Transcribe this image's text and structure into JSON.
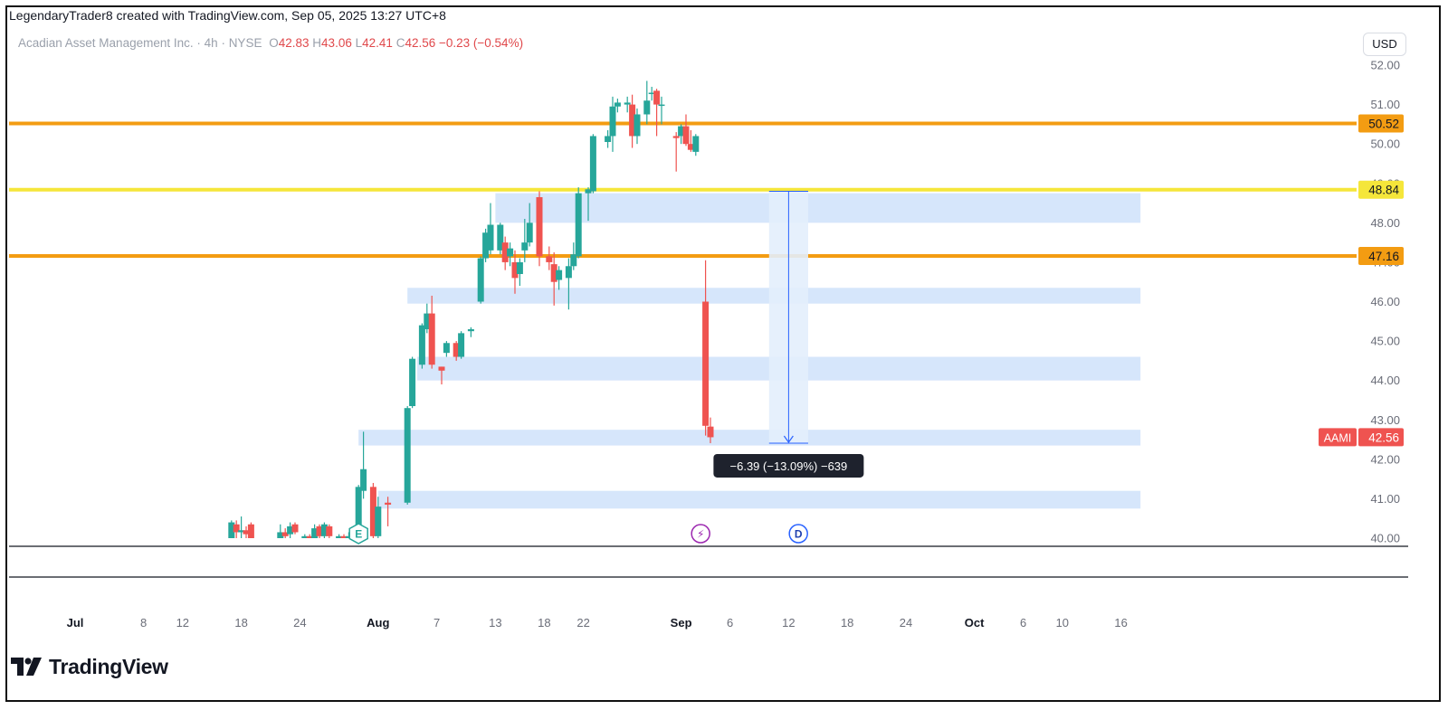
{
  "header": {
    "caption": "LegendaryTrader8 created with TradingView.com, Sep 05, 2025 13:27 UTC+8"
  },
  "symbol": {
    "name": "Acadian Asset Management Inc.",
    "interval": "4h",
    "exchange": "NYSE",
    "open_label": "O",
    "open": "42.83",
    "high_label": "H",
    "high": "43.06",
    "low_label": "L",
    "low": "42.41",
    "close_label": "C",
    "close": "42.56",
    "change": "−0.23 (−0.54%)"
  },
  "currency": "USD",
  "branding": {
    "logo_text": "TradingView"
  },
  "colors": {
    "up": "#26a69a",
    "down": "#ef5350",
    "orange_level": "#f39c12",
    "yellow_level": "#f5e63a",
    "zone": "#d6e6fb",
    "measure": "#2962ff"
  },
  "chart_data": {
    "type": "candlestick",
    "symbol": "AAMI",
    "ylim": [
      39.9,
      52.2
    ],
    "y_ticks": [
      "52.00",
      "51.00",
      "50.00",
      "49.00",
      "48.00",
      "47.00",
      "46.00",
      "45.00",
      "44.00",
      "43.00",
      "42.00",
      "41.00",
      "40.00"
    ],
    "x_ticks": [
      {
        "date": "2025-07-01",
        "label": "Jul"
      },
      {
        "date": "2025-07-08",
        "label": "8"
      },
      {
        "date": "2025-07-12",
        "label": "12"
      },
      {
        "date": "2025-07-18",
        "label": "18"
      },
      {
        "date": "2025-07-24",
        "label": "24"
      },
      {
        "date": "2025-08-01",
        "label": "Aug"
      },
      {
        "date": "2025-08-07",
        "label": "7"
      },
      {
        "date": "2025-08-13",
        "label": "13"
      },
      {
        "date": "2025-08-18",
        "label": "18"
      },
      {
        "date": "2025-08-22",
        "label": "22"
      },
      {
        "date": "2025-09-01",
        "label": "Sep"
      },
      {
        "date": "2025-09-06",
        "label": "6"
      },
      {
        "date": "2025-09-12",
        "label": "12"
      },
      {
        "date": "2025-09-18",
        "label": "18"
      },
      {
        "date": "2025-09-24",
        "label": "24"
      },
      {
        "date": "2025-10-01",
        "label": "Oct"
      },
      {
        "date": "2025-10-06",
        "label": "6"
      },
      {
        "date": "2025-10-10",
        "label": "10"
      },
      {
        "date": "2025-10-16",
        "label": "16"
      }
    ],
    "levels": [
      {
        "price": 50.52,
        "label": "50.52",
        "color": "#f39c12"
      },
      {
        "price": 48.84,
        "label": "48.84",
        "color": "#f5e63a"
      },
      {
        "price": 47.16,
        "label": "47.16",
        "color": "#f39c12"
      }
    ],
    "zones": [
      {
        "from": "2025-08-13",
        "to": "2025-10-18",
        "low": 48.0,
        "high": 48.75
      },
      {
        "from": "2025-08-04",
        "to": "2025-10-18",
        "low": 45.95,
        "high": 46.35
      },
      {
        "from": "2025-08-05",
        "to": "2025-10-18",
        "low": 44.0,
        "high": 44.6
      },
      {
        "from": "2025-07-30",
        "to": "2025-10-18",
        "low": 42.35,
        "high": 42.75
      },
      {
        "from": "2025-08-01",
        "to": "2025-10-18",
        "low": 40.75,
        "high": 41.2
      }
    ],
    "measure": {
      "from": "2025-09-10",
      "to": "2025-09-14",
      "start": 48.8,
      "end": 42.41,
      "label": "−6.39 (−13.09%) −639"
    },
    "markers": [
      {
        "date": "2025-07-30",
        "label": "E"
      },
      {
        "date": "2025-09-03",
        "label": "⚡"
      },
      {
        "date": "2025-09-13",
        "label": "D"
      }
    ],
    "last_price": {
      "symbol": "AAMI",
      "value": "42.56",
      "price": 42.56
    },
    "candles": [
      {
        "t": "2025-07-17T00",
        "o": 40.0,
        "h": 40.45,
        "l": 39.95,
        "c": 40.4
      },
      {
        "t": "2025-07-17T12",
        "o": 40.35,
        "h": 40.45,
        "l": 40.0,
        "c": 40.15
      },
      {
        "t": "2025-07-18T00",
        "o": 40.15,
        "h": 40.55,
        "l": 40.0,
        "c": 40.2
      },
      {
        "t": "2025-07-18T12",
        "o": 40.2,
        "h": 40.3,
        "l": 40.0,
        "c": 40.1
      },
      {
        "t": "2025-07-19T00",
        "o": 40.35,
        "h": 40.4,
        "l": 39.95,
        "c": 40.0
      },
      {
        "t": "2025-07-22T00",
        "o": 40.0,
        "h": 40.35,
        "l": 39.95,
        "c": 40.15
      },
      {
        "t": "2025-07-22T12",
        "o": 40.15,
        "h": 40.25,
        "l": 40.0,
        "c": 40.05
      },
      {
        "t": "2025-07-23T00",
        "o": 40.1,
        "h": 40.4,
        "l": 40.0,
        "c": 40.3
      },
      {
        "t": "2025-07-23T12",
        "o": 40.35,
        "h": 40.4,
        "l": 40.1,
        "c": 40.15
      },
      {
        "t": "2025-07-24T12",
        "o": 40.0,
        "h": 40.1,
        "l": 39.95,
        "c": 40.05
      },
      {
        "t": "2025-07-25T00",
        "o": 40.05,
        "h": 40.1,
        "l": 39.95,
        "c": 40.0
      },
      {
        "t": "2025-07-25T12",
        "o": 40.0,
        "h": 40.35,
        "l": 39.95,
        "c": 40.25
      },
      {
        "t": "2025-07-26T00",
        "o": 40.3,
        "h": 40.35,
        "l": 40.0,
        "c": 40.05
      },
      {
        "t": "2025-07-26T12",
        "o": 40.05,
        "h": 40.4,
        "l": 39.95,
        "c": 40.35
      },
      {
        "t": "2025-07-27T00",
        "o": 40.3,
        "h": 40.35,
        "l": 40.0,
        "c": 40.05
      },
      {
        "t": "2025-07-28T00",
        "o": 40.0,
        "h": 40.1,
        "l": 39.95,
        "c": 40.05
      },
      {
        "t": "2025-07-28T12",
        "o": 40.05,
        "h": 40.1,
        "l": 39.95,
        "c": 40.0
      },
      {
        "t": "2025-07-29T00",
        "o": 40.0,
        "h": 40.15,
        "l": 39.95,
        "c": 40.05
      },
      {
        "t": "2025-07-30T00",
        "o": 40.05,
        "h": 41.35,
        "l": 39.95,
        "c": 41.3
      },
      {
        "t": "2025-07-30T12",
        "o": 41.2,
        "h": 42.7,
        "l": 41.0,
        "c": 41.75
      },
      {
        "t": "2025-07-31T12",
        "o": 41.3,
        "h": 41.4,
        "l": 40.0,
        "c": 40.05
      },
      {
        "t": "2025-08-01T00",
        "o": 40.05,
        "h": 41.05,
        "l": 39.95,
        "c": 40.8
      },
      {
        "t": "2025-08-02T00",
        "o": 40.9,
        "h": 41.05,
        "l": 40.3,
        "c": 40.85
      },
      {
        "t": "2025-08-04T00",
        "o": 40.9,
        "h": 43.35,
        "l": 40.85,
        "c": 43.3
      },
      {
        "t": "2025-08-04T12",
        "o": 43.35,
        "h": 44.6,
        "l": 43.3,
        "c": 44.55
      },
      {
        "t": "2025-08-05T12",
        "o": 44.4,
        "h": 45.45,
        "l": 44.3,
        "c": 45.4
      },
      {
        "t": "2025-08-06T00",
        "o": 45.3,
        "h": 45.95,
        "l": 45.2,
        "c": 45.7
      },
      {
        "t": "2025-08-06T12",
        "o": 45.7,
        "h": 46.15,
        "l": 44.3,
        "c": 44.4
      },
      {
        "t": "2025-08-07T12",
        "o": 44.35,
        "h": 44.35,
        "l": 43.9,
        "c": 44.25
      },
      {
        "t": "2025-08-08T00",
        "o": 44.7,
        "h": 45.0,
        "l": 44.6,
        "c": 44.95
      },
      {
        "t": "2025-08-09T00",
        "o": 44.95,
        "h": 45.0,
        "l": 44.5,
        "c": 44.6
      },
      {
        "t": "2025-08-09T12",
        "o": 44.6,
        "h": 45.25,
        "l": 44.55,
        "c": 45.2
      },
      {
        "t": "2025-08-10T12",
        "o": 45.25,
        "h": 45.35,
        "l": 45.1,
        "c": 45.3
      },
      {
        "t": "2025-08-11T12",
        "o": 46.0,
        "h": 47.15,
        "l": 45.95,
        "c": 47.1
      },
      {
        "t": "2025-08-12T00",
        "o": 47.1,
        "h": 47.85,
        "l": 47.0,
        "c": 47.75
      },
      {
        "t": "2025-08-12T12",
        "o": 47.3,
        "h": 48.5,
        "l": 47.2,
        "c": 47.95
      },
      {
        "t": "2025-08-13T12",
        "o": 47.3,
        "h": 48.0,
        "l": 47.2,
        "c": 47.95
      },
      {
        "t": "2025-08-14T00",
        "o": 47.5,
        "h": 47.65,
        "l": 46.8,
        "c": 47.0
      },
      {
        "t": "2025-08-14T12",
        "o": 47.15,
        "h": 47.5,
        "l": 46.9,
        "c": 47.35
      },
      {
        "t": "2025-08-15T00",
        "o": 47.0,
        "h": 47.3,
        "l": 46.2,
        "c": 46.6
      },
      {
        "t": "2025-08-15T12",
        "o": 46.7,
        "h": 47.1,
        "l": 46.4,
        "c": 47.0
      },
      {
        "t": "2025-08-16T00",
        "o": 47.3,
        "h": 48.1,
        "l": 47.0,
        "c": 47.5
      },
      {
        "t": "2025-08-16T12",
        "o": 47.5,
        "h": 48.5,
        "l": 47.4,
        "c": 48.0
      },
      {
        "t": "2025-08-17T12",
        "o": 48.65,
        "h": 48.8,
        "l": 46.9,
        "c": 47.15
      },
      {
        "t": "2025-08-18T12",
        "o": 47.15,
        "h": 47.4,
        "l": 46.8,
        "c": 47.0
      },
      {
        "t": "2025-08-19T00",
        "o": 46.95,
        "h": 47.25,
        "l": 45.9,
        "c": 46.5
      },
      {
        "t": "2025-08-19T12",
        "o": 46.55,
        "h": 46.9,
        "l": 46.3,
        "c": 46.8
      },
      {
        "t": "2025-08-20T12",
        "o": 46.6,
        "h": 47.1,
        "l": 45.8,
        "c": 46.9
      },
      {
        "t": "2025-08-21T00",
        "o": 46.9,
        "h": 47.5,
        "l": 46.8,
        "c": 47.2
      },
      {
        "t": "2025-08-21T12",
        "o": 47.15,
        "h": 48.9,
        "l": 47.1,
        "c": 48.75
      },
      {
        "t": "2025-08-22T12",
        "o": 48.75,
        "h": 48.9,
        "l": 48.05,
        "c": 48.85
      },
      {
        "t": "2025-08-23T00",
        "o": 48.8,
        "h": 50.25,
        "l": 48.75,
        "c": 50.2
      },
      {
        "t": "2025-08-24T12",
        "o": 50.05,
        "h": 50.35,
        "l": 49.9,
        "c": 50.2
      },
      {
        "t": "2025-08-25T00",
        "o": 50.2,
        "h": 51.2,
        "l": 49.8,
        "c": 50.95
      },
      {
        "t": "2025-08-25T12",
        "o": 50.95,
        "h": 51.15,
        "l": 50.8,
        "c": 51.05
      },
      {
        "t": "2025-08-26T12",
        "o": 51.0,
        "h": 51.2,
        "l": 50.8,
        "c": 51.05
      },
      {
        "t": "2025-08-27T00",
        "o": 51.0,
        "h": 51.25,
        "l": 49.9,
        "c": 50.2
      },
      {
        "t": "2025-08-27T12",
        "o": 50.2,
        "h": 50.9,
        "l": 50.0,
        "c": 50.75
      },
      {
        "t": "2025-08-28T12",
        "o": 50.75,
        "h": 51.6,
        "l": 50.5,
        "c": 51.1
      },
      {
        "t": "2025-08-29T00",
        "o": 51.3,
        "h": 51.45,
        "l": 51.1,
        "c": 51.3
      },
      {
        "t": "2025-08-29T12",
        "o": 51.35,
        "h": 51.4,
        "l": 50.2,
        "c": 51.0
      },
      {
        "t": "2025-08-30T00",
        "o": 51.0,
        "h": 51.2,
        "l": 50.5,
        "c": 51.0
      },
      {
        "t": "2025-08-31T12",
        "o": 50.2,
        "h": 50.3,
        "l": 49.3,
        "c": 50.15
      },
      {
        "t": "2025-09-01T00",
        "o": 50.2,
        "h": 50.5,
        "l": 50.0,
        "c": 50.45
      },
      {
        "t": "2025-09-01T12",
        "o": 50.45,
        "h": 50.75,
        "l": 49.95,
        "c": 50.0
      },
      {
        "t": "2025-09-02T00",
        "o": 50.0,
        "h": 50.35,
        "l": 49.8,
        "c": 49.85
      },
      {
        "t": "2025-09-02T12",
        "o": 49.8,
        "h": 50.25,
        "l": 49.7,
        "c": 50.2
      },
      {
        "t": "2025-09-03T12",
        "o": 46.0,
        "h": 47.05,
        "l": 42.6,
        "c": 42.85
      },
      {
        "t": "2025-09-04T00",
        "o": 42.83,
        "h": 43.06,
        "l": 42.41,
        "c": 42.56
      }
    ]
  }
}
